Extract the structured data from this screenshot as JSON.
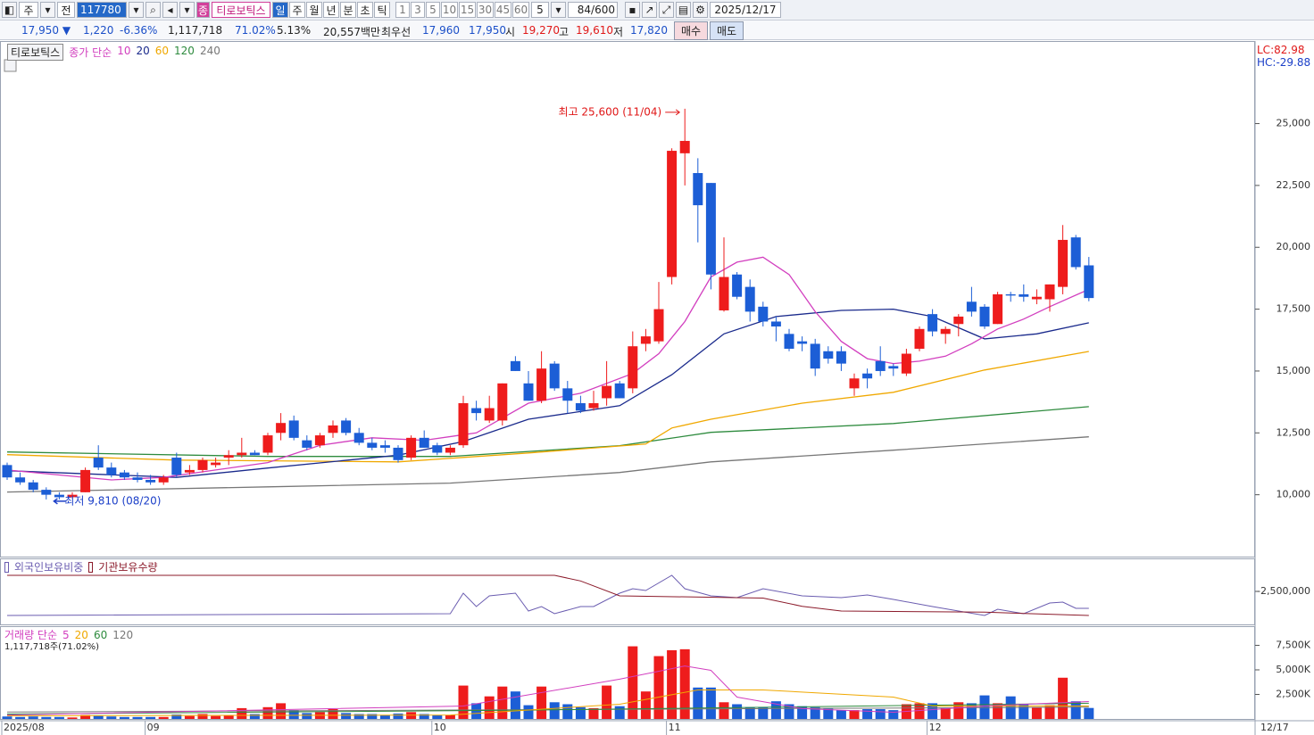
{
  "toolbar": {
    "market": "주",
    "prev": "전",
    "code": "117780",
    "badge": "종",
    "name": "티로보틱스",
    "intervals": [
      "일",
      "주",
      "월",
      "년",
      "분",
      "초",
      "틱"
    ],
    "counts": [
      "1",
      "3",
      "5",
      "10",
      "15",
      "30",
      "45",
      "60"
    ],
    "count_value": "5",
    "bars": "84",
    "bars_max": "/600",
    "date": "2025/12/17"
  },
  "quote_bar": {
    "price": "17,950",
    "change_sign": "▼",
    "change": "1,220",
    "rate": "-6.36%",
    "volume": "1,117,718",
    "volume_rate": "71.02%",
    "turnover": "5.13%",
    "amount": "20,557백만",
    "best_label": "최우선",
    "ask": "17,960",
    "bid": "17,950",
    "open_label": "시",
    "open": "19,270",
    "high_label": "고",
    "high": "19,610",
    "low_label": "저",
    "low": "17,820",
    "buy": "매수",
    "sell": "매도"
  },
  "chart_data": [
    {
      "type": "candlestick",
      "name": "티로보틱스",
      "legend_label": "종가 단순",
      "categories": [
        "2025/08",
        null,
        null,
        null,
        null,
        null,
        null,
        null,
        null,
        null,
        null,
        "09",
        null,
        null,
        null,
        null,
        null,
        null,
        null,
        null,
        null,
        null,
        null,
        null,
        null,
        null,
        null,
        null,
        null,
        null,
        null,
        null,
        null,
        "10",
        null,
        null,
        null,
        null,
        null,
        null,
        null,
        null,
        null,
        null,
        null,
        null,
        null,
        null,
        null,
        null,
        null,
        "11",
        null,
        null,
        null,
        null,
        null,
        null,
        null,
        null,
        null,
        null,
        null,
        null,
        null,
        null,
        null,
        null,
        null,
        null,
        null,
        "12",
        null,
        null,
        null,
        null,
        null,
        null,
        null,
        null,
        null,
        null,
        null,
        null
      ],
      "open": [
        11200,
        10700,
        10500,
        10200,
        10000,
        9900,
        10100,
        11500,
        11100,
        10900,
        10700,
        10600,
        10500,
        11500,
        10900,
        11000,
        11200,
        11500,
        11600,
        11700,
        11700,
        12500,
        13000,
        12200,
        12000,
        12500,
        13000,
        12500,
        12100,
        12000,
        11900,
        11500,
        12300,
        12000,
        11700,
        12000,
        13500,
        13000,
        13000,
        15400,
        14500,
        13800,
        15300,
        14300,
        13700,
        13500,
        13900,
        14500,
        14300,
        16100,
        16200,
        18800,
        23800,
        23000,
        22600,
        17450,
        18900,
        18400,
        17600,
        17000,
        16500,
        16200,
        16100,
        15800,
        15800,
        14300,
        14900,
        15400,
        15200,
        14900,
        15900,
        17300,
        16500,
        16900,
        17800,
        17600,
        16900,
        18100,
        18100,
        17900,
        17900,
        18400,
        20400,
        19270
      ],
      "high": [
        11300,
        10900,
        10600,
        10300,
        10100,
        10100,
        11100,
        12000,
        11300,
        11000,
        10900,
        10800,
        10800,
        11700,
        11200,
        11500,
        11500,
        11800,
        12300,
        11800,
        12500,
        13300,
        13200,
        12400,
        12500,
        13000,
        13100,
        12700,
        12300,
        12200,
        12000,
        12400,
        12600,
        12100,
        12000,
        14000,
        13800,
        14000,
        14500,
        15600,
        15000,
        15800,
        15400,
        14600,
        14000,
        14200,
        15400,
        14600,
        16600,
        16700,
        18600,
        24000,
        25600,
        23600,
        22600,
        20400,
        19000,
        18700,
        17800,
        17200,
        16700,
        16400,
        16300,
        16000,
        16000,
        14900,
        15100,
        16000,
        15300,
        15900,
        16800,
        17500,
        16800,
        17300,
        18400,
        17700,
        18200,
        18200,
        18500,
        18300,
        18500,
        20900,
        20500,
        19610
      ],
      "low": [
        10600,
        10400,
        10100,
        9810,
        9810,
        9850,
        10100,
        11000,
        10700,
        10600,
        10500,
        10400,
        10400,
        10700,
        10800,
        10900,
        11100,
        11200,
        11500,
        11600,
        11600,
        12200,
        12200,
        11800,
        11900,
        12300,
        12400,
        12000,
        11800,
        11700,
        11300,
        11400,
        11900,
        11600,
        11600,
        11900,
        13000,
        12900,
        12800,
        15000,
        13800,
        13700,
        14200,
        13300,
        13300,
        13400,
        13600,
        13900,
        14100,
        15800,
        16100,
        18500,
        22500,
        20200,
        18300,
        17400,
        17900,
        17000,
        16800,
        16200,
        15800,
        15800,
        14800,
        15300,
        15000,
        14000,
        14300,
        14800,
        14800,
        14800,
        15800,
        16400,
        16100,
        16400,
        17200,
        16700,
        16900,
        17800,
        17800,
        17700,
        17400,
        18100,
        19100,
        17820
      ],
      "close": [
        10700,
        10500,
        10200,
        10000,
        9900,
        10000,
        11000,
        11100,
        10800,
        10700,
        10600,
        10500,
        10700,
        10800,
        11000,
        11400,
        11300,
        11600,
        11700,
        11600,
        12400,
        12900,
        12300,
        11900,
        12400,
        12800,
        12500,
        12100,
        11900,
        11900,
        11400,
        12300,
        11900,
        11700,
        11900,
        13700,
        13300,
        13500,
        14500,
        15000,
        13800,
        15100,
        14300,
        13800,
        13400,
        13700,
        14400,
        13900,
        16000,
        16400,
        17500,
        23900,
        24300,
        21700,
        18900,
        18800,
        18000,
        17400,
        17000,
        16800,
        15900,
        16100,
        15100,
        15500,
        15300,
        14700,
        14700,
        15000,
        15100,
        15700,
        16700,
        16600,
        16700,
        17200,
        17400,
        16800,
        18100,
        18050,
        18000,
        18000,
        18500,
        20300,
        19200,
        17950
      ],
      "up_color": "#ee1c1c",
      "down_color": "#1c5ed6",
      "ylim": [
        7500,
        28300
      ],
      "yticks": [
        {
          "value": 10000,
          "label": "10,000"
        },
        {
          "value": 12500,
          "label": "12,500"
        },
        {
          "value": 15000,
          "label": "15,000"
        },
        {
          "value": 17500,
          "label": "17,500"
        },
        {
          "value": 20000,
          "label": "20,000"
        },
        {
          "value": 22500,
          "label": "22,500"
        },
        {
          "value": 25000,
          "label": "25,000"
        }
      ],
      "lines": [
        {
          "name": "10",
          "color": "#d23fbf",
          "x": [
            0,
            4,
            8,
            12,
            16,
            20,
            24,
            28,
            32,
            36,
            40,
            44,
            48,
            50,
            52,
            54,
            56,
            58,
            60,
            62,
            64,
            66,
            68,
            70,
            72,
            74,
            76,
            78,
            80,
            83
          ],
          "values": [
            11000,
            10800,
            10600,
            10700,
            11000,
            11300,
            12000,
            12300,
            12200,
            12500,
            13700,
            14100,
            14900,
            15700,
            17000,
            18800,
            19400,
            19600,
            18900,
            17400,
            16200,
            15500,
            15300,
            15400,
            15600,
            16100,
            16700,
            17100,
            17600,
            18300
          ]
        },
        {
          "name": "20",
          "color": "#1a2a8c",
          "x": [
            0,
            13,
            20,
            30,
            35,
            40,
            47,
            51,
            55,
            59,
            64,
            68,
            71,
            75,
            79,
            83
          ],
          "values": [
            10970,
            10700,
            11080,
            11600,
            12150,
            13050,
            13600,
            14850,
            16500,
            17200,
            17450,
            17500,
            17200,
            16300,
            16500,
            16950
          ]
        },
        {
          "name": "60",
          "color": "#f0a800",
          "x": [
            0,
            13,
            30,
            40,
            49,
            51,
            54,
            61,
            68,
            75,
            83
          ],
          "values": [
            11620,
            11400,
            11330,
            11690,
            12050,
            12700,
            13050,
            13700,
            14140,
            15040,
            15790
          ]
        },
        {
          "name": "120",
          "color": "#2e8b3e",
          "x": [
            0,
            20,
            34,
            47,
            54,
            68,
            83
          ],
          "values": [
            11730,
            11550,
            11550,
            11980,
            12520,
            12880,
            13560
          ]
        },
        {
          "name": "240",
          "color": "#777777",
          "x": [
            0,
            20,
            34,
            47,
            54,
            68,
            83
          ],
          "values": [
            10110,
            10320,
            10470,
            10900,
            11330,
            11800,
            12340
          ]
        }
      ],
      "annotations": [
        {
          "text": "최고 25,600 (11/04)",
          "index": 52,
          "value": 25600,
          "color": "#e01818"
        },
        {
          "text": "최저 9,810 (08/20)",
          "index": 4,
          "value": 9810,
          "color": "#1b3fc8"
        }
      ],
      "indicator_labels": [
        {
          "text": "LC:82.98",
          "color": "#e01818"
        },
        {
          "text": "HC:-29.88",
          "color": "#1b3fc8"
        }
      ],
      "end_label": "12/17"
    },
    {
      "type": "line",
      "ylim": [
        -4720000,
        -340000
      ],
      "yticks": [
        {
          "value": -2500000,
          "label": "-2,500,000"
        }
      ],
      "series": [
        {
          "name": "외국인보유비중",
          "color": "#6a5cb0",
          "x": [
            0,
            34,
            35,
            36,
            37,
            39,
            40,
            41,
            42,
            44,
            45,
            47,
            48,
            49,
            51,
            52,
            54,
            56,
            58,
            61,
            64,
            66,
            68,
            71,
            75,
            76,
            78,
            80,
            81,
            82,
            83
          ],
          "values": [
            -4120000,
            -4000000,
            -2620000,
            -3520000,
            -2800000,
            -2620000,
            -3820000,
            -3520000,
            -4000000,
            -3520000,
            -3520000,
            -2620000,
            -2320000,
            -2440000,
            -1420000,
            -2320000,
            -2800000,
            -2920000,
            -2320000,
            -2800000,
            -2920000,
            -2740000,
            -3040000,
            -3520000,
            -4120000,
            -3700000,
            -4000000,
            -3280000,
            -3220000,
            -3640000,
            -3640000
          ]
        },
        {
          "name": "기관보유수량",
          "color": "#8b1a2a",
          "x": [
            0,
            42,
            44,
            47,
            58,
            61,
            64,
            75,
            83
          ],
          "values": [
            -1420000,
            -1420000,
            -1800000,
            -2800000,
            -2950000,
            -3500000,
            -3820000,
            -3900000,
            -4120000
          ]
        }
      ]
    },
    {
      "type": "volume",
      "legend_label": "거래량 단순",
      "summary": "1,117,718주(71.02%)",
      "values": [
        250,
        200,
        250,
        200,
        200,
        150,
        400,
        350,
        250,
        200,
        200,
        200,
        200,
        450,
        300,
        500,
        300,
        350,
        1100,
        500,
        1200,
        1600,
        900,
        600,
        700,
        1000,
        600,
        500,
        500,
        400,
        550,
        700,
        500,
        400,
        400,
        3400,
        1600,
        2300,
        3300,
        2800,
        1400,
        3300,
        1700,
        1500,
        1200,
        1100,
        3400,
        1300,
        7400,
        2800,
        6400,
        7000,
        7100,
        3200,
        3200,
        1700,
        1500,
        1200,
        1200,
        1800,
        1500,
        1300,
        1200,
        1100,
        900,
        900,
        1000,
        1000,
        900,
        1500,
        1600,
        1600,
        1100,
        1700,
        1600,
        2400,
        1600,
        2300,
        1500,
        1200,
        1400,
        4200,
        1800,
        1117.718
      ],
      "ylim": [
        0,
        9360
      ],
      "yticks": [
        {
          "value": 2500,
          "label": "2,500K"
        },
        {
          "value": 5000,
          "label": "5,000K"
        },
        {
          "value": 7500,
          "label": "7,500K"
        }
      ],
      "lines": [
        {
          "name": "5",
          "color": "#d23fbf",
          "x": [
            0,
            35,
            47,
            52,
            54,
            56,
            61,
            68,
            75,
            83
          ],
          "values": [
            400,
            1320,
            4050,
            5400,
            4950,
            2230,
            1050,
            680,
            1320,
            1770
          ]
        },
        {
          "name": "20",
          "color": "#f0a800",
          "x": [
            0,
            34,
            47,
            53,
            58,
            68,
            71,
            83
          ],
          "values": [
            320,
            400,
            1500,
            2950,
            2950,
            2230,
            1320,
            1320
          ]
        },
        {
          "name": "60",
          "color": "#2e8b3e",
          "x": [
            0,
            40,
            83
          ],
          "values": [
            500,
            900,
            1600
          ]
        },
        {
          "name": "120",
          "color": "#777777",
          "x": [
            0,
            83
          ],
          "values": [
            700,
            1200
          ]
        }
      ]
    }
  ]
}
